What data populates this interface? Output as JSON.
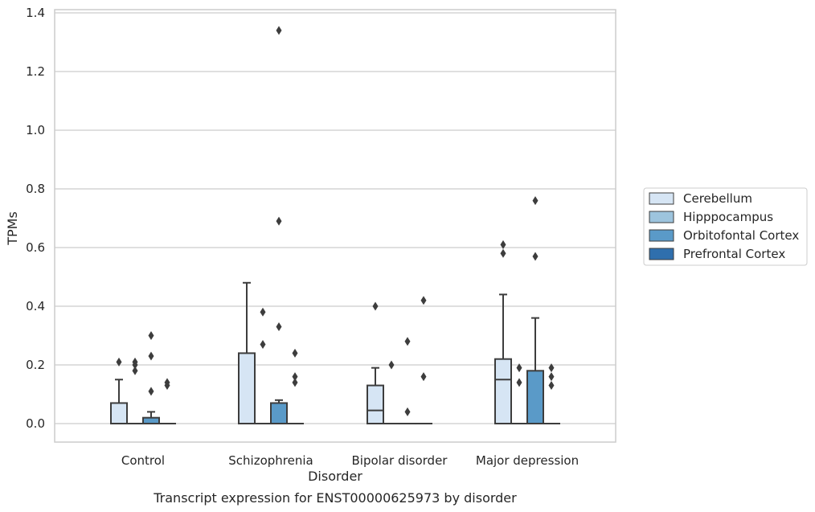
{
  "chart_data": {
    "type": "box",
    "title": "Transcript expression for ENST00000625973 by disorder",
    "xlabel": "Disorder",
    "ylabel": "TPMs",
    "ylim": [
      -0.065,
      1.41
    ],
    "yticks": [
      "0.0",
      "0.2",
      "0.4",
      "0.6",
      "0.8",
      "1.0",
      "1.2",
      "1.4"
    ],
    "ytick_values": [
      0,
      0.2,
      0.4,
      0.6,
      0.8,
      1.0,
      1.2,
      1.4
    ],
    "grid": true,
    "legend_placement": "right",
    "categories": [
      "Control",
      "Schizophrenia",
      "Bipolar disorder",
      "Major depression"
    ],
    "series": [
      {
        "name": "Cerebellum",
        "color": "#d6e5f4",
        "boxes": [
          {
            "q1": 0,
            "median": 0,
            "q3": 0.07,
            "whisker_low": 0,
            "whisker_high": 0.15,
            "outliers": [
              0.21
            ]
          },
          {
            "q1": 0,
            "median": 0,
            "q3": 0.24,
            "whisker_low": 0,
            "whisker_high": 0.48,
            "outliers": []
          },
          {
            "q1": 0,
            "median": 0.045,
            "q3": 0.13,
            "whisker_low": 0,
            "whisker_high": 0.19,
            "outliers": [
              0.4
            ]
          },
          {
            "q1": 0,
            "median": 0.15,
            "q3": 0.22,
            "whisker_low": 0,
            "whisker_high": 0.44,
            "outliers": [
              0.61,
              0.58
            ]
          }
        ]
      },
      {
        "name": "Hipppocampus",
        "color": "#9dc4dd",
        "boxes": [
          {
            "q1": 0,
            "median": 0,
            "q3": 0,
            "whisker_low": 0,
            "whisker_high": 0,
            "outliers": [
              0.21,
              0.2,
              0.18
            ]
          },
          {
            "q1": 0,
            "median": 0,
            "q3": 0,
            "whisker_low": 0,
            "whisker_high": 0,
            "outliers": [
              0.38,
              0.27
            ]
          },
          {
            "q1": 0,
            "median": 0,
            "q3": 0,
            "whisker_low": 0,
            "whisker_high": 0,
            "outliers": [
              0.2
            ]
          },
          {
            "q1": 0,
            "median": 0,
            "q3": 0,
            "whisker_low": 0,
            "whisker_high": 0,
            "outliers": [
              0.19,
              0.14
            ]
          }
        ]
      },
      {
        "name": "Orbitofontal Cortex",
        "color": "#5a9ac8",
        "boxes": [
          {
            "q1": 0,
            "median": 0,
            "q3": 0.02,
            "whisker_low": 0,
            "whisker_high": 0.04,
            "outliers": [
              0.3,
              0.23,
              0.11
            ]
          },
          {
            "q1": 0,
            "median": 0,
            "q3": 0.07,
            "whisker_low": 0,
            "whisker_high": 0.08,
            "outliers": [
              1.34,
              0.69,
              0.33
            ]
          },
          {
            "q1": 0,
            "median": 0,
            "q3": 0,
            "whisker_low": 0,
            "whisker_high": 0,
            "outliers": [
              0.28,
              0.04
            ]
          },
          {
            "q1": 0,
            "median": 0,
            "q3": 0.18,
            "whisker_low": 0,
            "whisker_high": 0.36,
            "outliers": [
              0.76,
              0.57
            ]
          }
        ]
      },
      {
        "name": "Prefrontal Cortex",
        "color": "#2f6fad",
        "boxes": [
          {
            "q1": 0,
            "median": 0,
            "q3": 0,
            "whisker_low": 0,
            "whisker_high": 0,
            "outliers": [
              0.14,
              0.13
            ]
          },
          {
            "q1": 0,
            "median": 0,
            "q3": 0,
            "whisker_low": 0,
            "whisker_high": 0,
            "outliers": [
              0.24,
              0.16,
              0.14
            ]
          },
          {
            "q1": 0,
            "median": 0,
            "q3": 0,
            "whisker_low": 0,
            "whisker_high": 0,
            "outliers": [
              0.42,
              0.16
            ]
          },
          {
            "q1": 0,
            "median": 0,
            "q3": 0,
            "whisker_low": 0,
            "whisker_high": 0,
            "outliers": [
              0.19,
              0.16,
              0.13
            ]
          }
        ]
      }
    ]
  }
}
